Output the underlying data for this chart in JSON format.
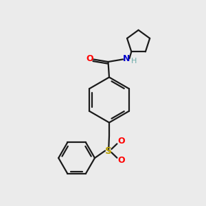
{
  "background_color": "#ebebeb",
  "bond_color": "#1a1a1a",
  "O_color": "#ff0000",
  "N_color": "#0000cc",
  "S_color": "#b8a000",
  "H_color": "#6aaba8",
  "figsize": [
    3.0,
    3.0
  ],
  "dpi": 100,
  "xlim": [
    0,
    10
  ],
  "ylim": [
    0,
    10
  ]
}
